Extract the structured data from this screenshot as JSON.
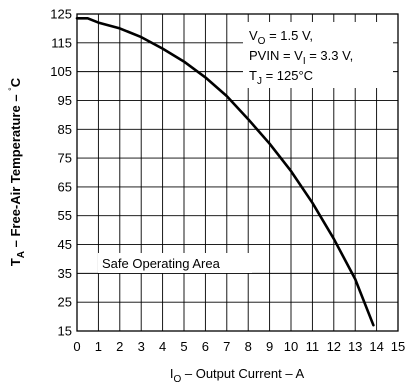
{
  "chart_data": {
    "type": "line",
    "xlabel": {
      "main": "I",
      "sub": "O",
      "rest": " – Output Current – A"
    },
    "ylabel": {
      "main": "T",
      "sub": "A",
      "rest": " – Free-Air Temperature – ",
      "unit": "°C"
    },
    "xlim": [
      0,
      15
    ],
    "ylim": [
      15,
      125
    ],
    "xticks": [
      0,
      1,
      2,
      3,
      4,
      5,
      6,
      7,
      8,
      9,
      10,
      11,
      12,
      13,
      14,
      15
    ],
    "yticks": [
      15,
      25,
      35,
      45,
      55,
      65,
      75,
      85,
      95,
      105,
      115,
      125
    ],
    "grid": true,
    "conditions": [
      {
        "main": "V",
        "sub": "O",
        "rest": " = 1.5 V,"
      },
      {
        "main": "PVIN = V",
        "sub": "I",
        "rest": " = 3.3 V,"
      },
      {
        "main": "T",
        "sub": "J",
        "rest": " = 125°C"
      }
    ],
    "region_label": "Safe Operating Area",
    "series": [
      {
        "x": [
          0,
          0.5,
          1,
          2,
          3,
          4,
          5,
          6,
          7,
          8,
          9,
          10,
          11,
          12,
          13,
          13.85
        ],
        "y": [
          123.5,
          123.5,
          122,
          120,
          117,
          113,
          108.5,
          103,
          96.5,
          88.5,
          80,
          70.5,
          59.5,
          47,
          33,
          17
        ]
      }
    ]
  }
}
